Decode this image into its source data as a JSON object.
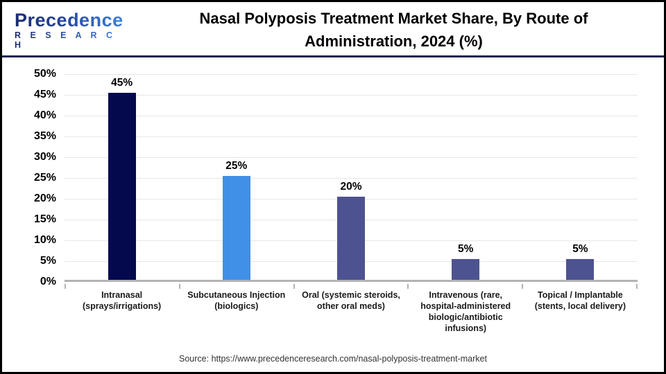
{
  "header": {
    "logo_name": "Precedence",
    "logo_sub": "R E S E A R C H",
    "title_line1": "Nasal Polyposis Treatment Market Share, By Route of",
    "title_line2": "Administration, 2024 (%)"
  },
  "chart_data": {
    "type": "bar",
    "title": "Nasal Polyposis Treatment Market Share, By Route of Administration, 2024 (%)",
    "categories": [
      "Intranasal (sprays/irrigations)",
      "Subcutaneous Injection (biologics)",
      "Oral (systemic steroids, other oral meds)",
      "Intravenous (rare, hospital-administered biologic/antibiotic infusions)",
      "Topical / Implantable (stents, local delivery)"
    ],
    "values": [
      45,
      25,
      20,
      5,
      5
    ],
    "value_labels": [
      "45%",
      "25%",
      "20%",
      "5%",
      "5%"
    ],
    "bar_colors": [
      "#04094e",
      "#4190e8",
      "#4d5390",
      "#4d5390",
      "#4d5390"
    ],
    "xlabel": "",
    "ylabel": "",
    "ylim": [
      0,
      50
    ],
    "ytick_step": 5,
    "ytick_labels": [
      "0%",
      "5%",
      "10%",
      "15%",
      "20%",
      "25%",
      "30%",
      "35%",
      "40%",
      "45%",
      "50%"
    ],
    "grid": true,
    "legend": false,
    "grid_color": "#e7e7e7",
    "axis_color": "#b3b3b3"
  },
  "footer": {
    "source": "Source: https://www.precedenceresearch.com/nasal-polyposis-treatment-market"
  }
}
